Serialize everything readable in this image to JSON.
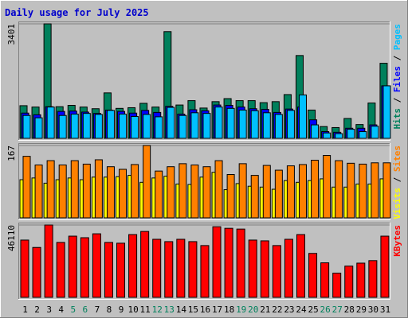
{
  "chart_data": {
    "title": "Daily usage for July 2025",
    "colors": {
      "background": "#C0C0C0",
      "title": "#0000CC",
      "hits": "#00805C",
      "files": "#0000FF",
      "pages": "#00C0FF",
      "visits": "#FFFF00",
      "sites": "#FF8000",
      "kbytes": "#FF0000",
      "weekend_label": "#00805C"
    },
    "days": [
      "1",
      "2",
      "3",
      "4",
      "5",
      "6",
      "7",
      "8",
      "9",
      "10",
      "11",
      "12",
      "13",
      "14",
      "15",
      "16",
      "17",
      "18",
      "19",
      "20",
      "21",
      "22",
      "23",
      "24",
      "25",
      "26",
      "27",
      "28",
      "29",
      "30",
      "31"
    ],
    "weekend_days": [
      "5",
      "6",
      "12",
      "13",
      "19",
      "20",
      "26",
      "27"
    ],
    "panels": [
      {
        "id": "top",
        "type": "bar",
        "max_label": "3401",
        "ymax": 3401,
        "side_labels": [
          {
            "text": "Hits",
            "color": "#00805C"
          },
          {
            "text": " / ",
            "color": "#000000"
          },
          {
            "text": "Files",
            "color": "#0000FF"
          },
          {
            "text": " / ",
            "color": "#000000"
          },
          {
            "text": "Pages",
            "color": "#00C0FF"
          }
        ],
        "series": [
          {
            "name": "Hits",
            "color": "#00805C",
            "values": [
              970,
              930,
              3401,
              940,
              980,
              930,
              880,
              1350,
              890,
              910,
              1040,
              930,
              3170,
              990,
              1120,
              900,
              1090,
              1180,
              1120,
              1120,
              1060,
              1090,
              1300,
              2460,
              840,
              350,
              320,
              590,
              410,
              1050,
              2230
            ]
          },
          {
            "name": "Files",
            "color": "#0000FF",
            "values": [
              750,
              700,
              940,
              800,
              810,
              780,
              740,
              840,
              800,
              750,
              830,
              770,
              950,
              720,
              850,
              820,
              990,
              980,
              930,
              880,
              860,
              770,
              870,
              930,
              550,
              200,
              180,
              300,
              300,
              400,
              1560
            ]
          },
          {
            "name": "Pages",
            "color": "#00C0FF",
            "values": [
              680,
              610,
              930,
              680,
              720,
              740,
              710,
              830,
              720,
              650,
              710,
              640,
              920,
              680,
              760,
              740,
              930,
              890,
              840,
              820,
              760,
              710,
              830,
              1290,
              400,
              160,
              140,
              270,
              200,
              360,
              1560
            ]
          }
        ]
      },
      {
        "id": "middle",
        "type": "bar",
        "max_label": "167",
        "ymax": 167,
        "side_labels": [
          {
            "text": "Visits",
            "color": "#FFFF00"
          },
          {
            "text": " / ",
            "color": "#000000"
          },
          {
            "text": "Sites",
            "color": "#FF8000"
          }
        ],
        "series": [
          {
            "name": "Visits",
            "color": "#FFFF00",
            "values": [
              88,
              92,
              80,
              88,
              92,
              88,
              94,
              94,
              95,
              98,
              82,
              92,
              96,
              78,
              77,
              94,
              105,
              65,
              79,
              73,
              71,
              66,
              86,
              82,
              86,
              90,
              71,
              71,
              78,
              78,
              90
            ]
          },
          {
            "name": "Sites",
            "color": "#FF8000",
            "values": [
              142,
              122,
              132,
              122,
              132,
              124,
              134,
              118,
              112,
              123,
              167,
              108,
              118,
              125,
              122,
              118,
              132,
              100,
              125,
              98,
              121,
              110,
              120,
              123,
              133,
              144,
              132,
              126,
              124,
              127,
              127
            ]
          }
        ]
      },
      {
        "id": "bottom",
        "type": "bar",
        "max_label": "46110",
        "ymax": 46110,
        "side_labels": [
          {
            "text": "KBytes",
            "color": "#FF0000"
          }
        ],
        "series": [
          {
            "name": "KBytes",
            "color": "#FF0000",
            "values": [
              36500,
              31800,
              46110,
              35000,
              39000,
              38000,
              40500,
              35000,
              34500,
              40000,
              42000,
              37000,
              35500,
              37000,
              35500,
              33000,
              45000,
              44000,
              43500,
              36500,
              36000,
              33000,
              37000,
              40000,
              28000,
              22000,
              15400,
              19900,
              21800,
              23400,
              39000
            ]
          }
        ]
      }
    ]
  }
}
